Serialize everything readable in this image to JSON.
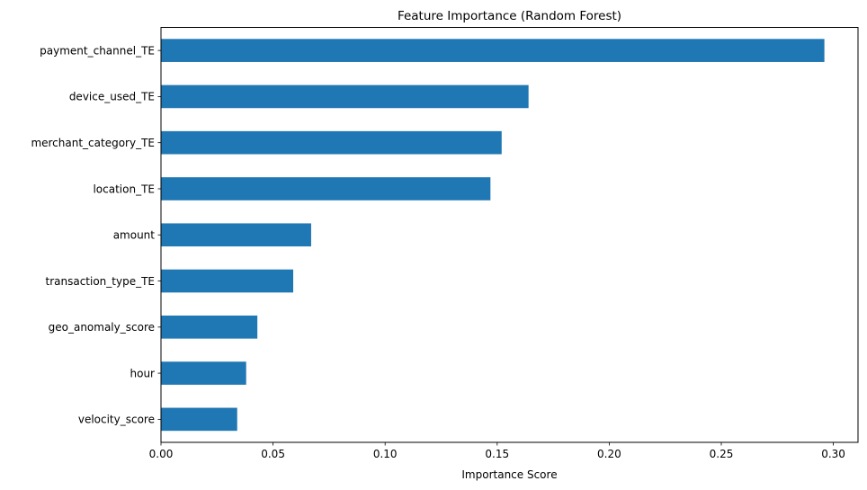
{
  "chart_data": {
    "type": "bar",
    "orientation": "horizontal",
    "title": "Feature Importance (Random Forest)",
    "xlabel": "Importance Score",
    "ylabel": "",
    "categories": [
      "payment_channel_TE",
      "device_used_TE",
      "merchant_category_TE",
      "location_TE",
      "amount",
      "transaction_type_TE",
      "geo_anomaly_score",
      "hour",
      "velocity_score"
    ],
    "values": [
      0.296,
      0.164,
      0.152,
      0.147,
      0.067,
      0.059,
      0.043,
      0.038,
      0.034
    ],
    "xlim": [
      0.0,
      0.311
    ],
    "xticks": [
      0.0,
      0.05,
      0.1,
      0.15,
      0.2,
      0.25,
      0.3
    ],
    "xtick_labels": [
      "0.00",
      "0.05",
      "0.10",
      "0.15",
      "0.20",
      "0.25",
      "0.30"
    ],
    "grid": false,
    "legend": null,
    "bar_color": "#1f77b4"
  }
}
